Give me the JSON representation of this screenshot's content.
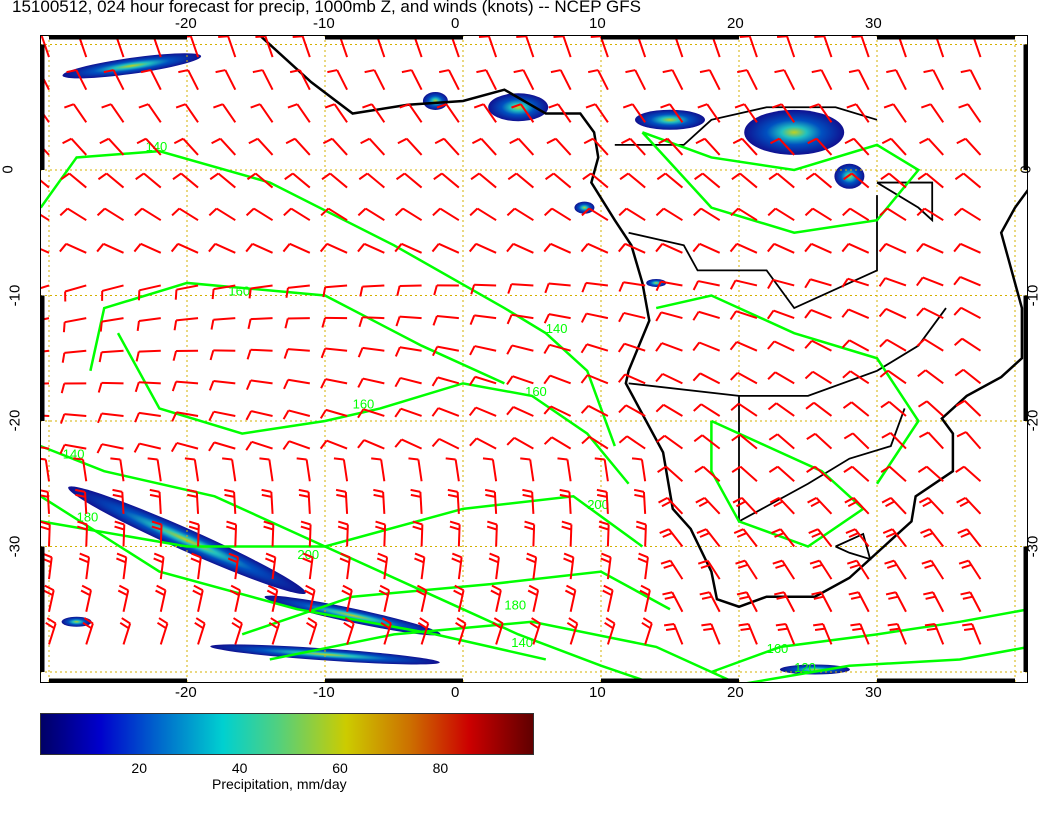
{
  "title": "15100512, 024 hour forecast for precip, 1000mb Z, and winds (knots) -- NCEP GFS",
  "map": {
    "lon_range": [
      -30.6,
      40.9
    ],
    "lat_range": [
      -41,
      10.8
    ],
    "lon_ticks": [
      "-20",
      "-10",
      "0",
      "10",
      "20",
      "30"
    ],
    "lon_tick_values": [
      -20,
      -10,
      0,
      10,
      20,
      30
    ],
    "lat_ticks": [
      "0",
      "-10",
      "-20",
      "-30"
    ],
    "lat_tick_values": [
      0,
      -10,
      -20,
      -30
    ],
    "grid": true,
    "colors": {
      "barbs": "#ff0000",
      "contours": "#00ff00",
      "coast": "#000000",
      "grid": "#d4b000"
    },
    "contour_labels": [
      {
        "text": "140",
        "lon": -23,
        "lat": 1.5
      },
      {
        "text": "160",
        "lon": -17,
        "lat": -10
      },
      {
        "text": "140",
        "lon": 6,
        "lat": -13
      },
      {
        "text": "160",
        "lon": 4.5,
        "lat": -18
      },
      {
        "text": "160",
        "lon": -8,
        "lat": -19
      },
      {
        "text": "140",
        "lon": -29,
        "lat": -23
      },
      {
        "text": "180",
        "lon": -28,
        "lat": -28
      },
      {
        "text": "200",
        "lon": -12,
        "lat": -31
      },
      {
        "text": "200",
        "lon": 9,
        "lat": -27
      },
      {
        "text": "180",
        "lon": 3,
        "lat": -35
      },
      {
        "text": "140",
        "lon": 3.5,
        "lat": -38
      },
      {
        "text": "160",
        "lon": 22,
        "lat": -38.5
      },
      {
        "text": "120",
        "lon": 24,
        "lat": -40
      }
    ]
  },
  "colorbar": {
    "ticks": [
      "20",
      "40",
      "60",
      "80"
    ],
    "tick_values": [
      20,
      40,
      60,
      80
    ],
    "range": [
      0,
      98
    ],
    "label": "Precipitation, mm/day"
  }
}
